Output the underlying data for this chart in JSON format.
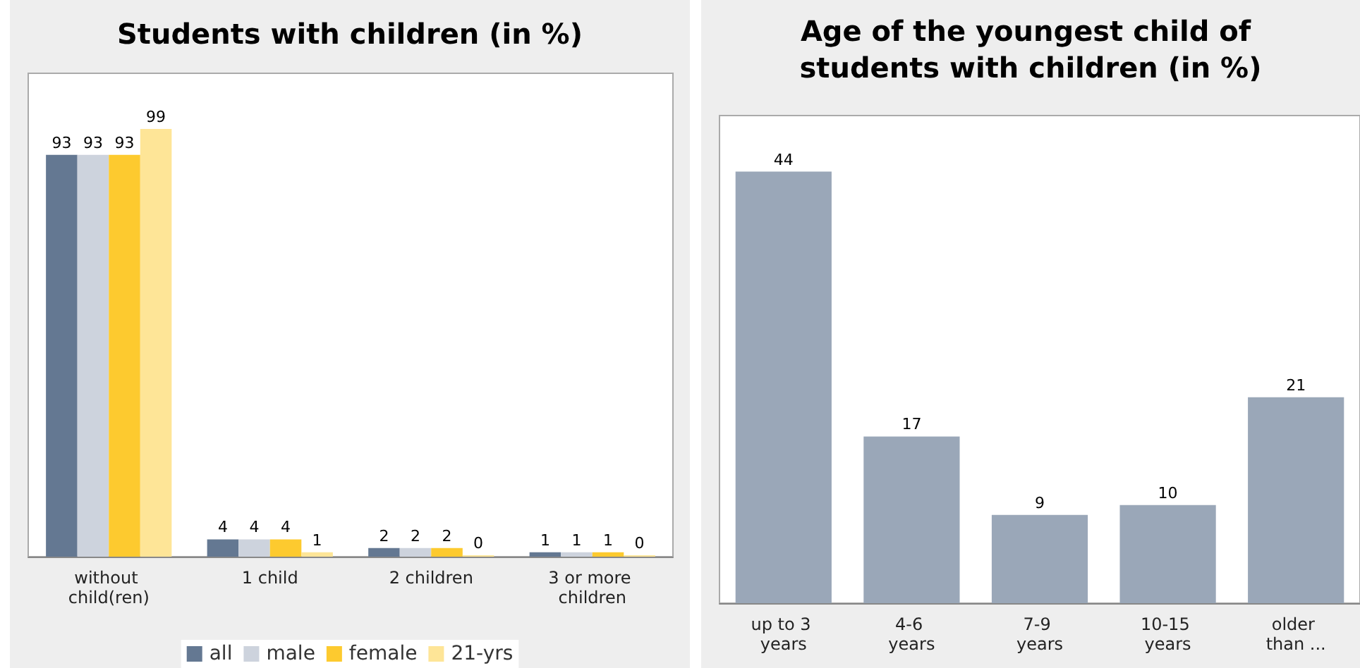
{
  "chart_data": [
    {
      "type": "bar",
      "title": "Students with children (in %)",
      "categories": [
        "without child(ren)",
        "1 child",
        "2 children",
        "3 or more children"
      ],
      "series": [
        {
          "name": "all",
          "color": "#647892",
          "values": [
            93,
            4,
            2,
            1
          ]
        },
        {
          "name": "male",
          "color": "#cdd3dd",
          "values": [
            93,
            4,
            2,
            1
          ]
        },
        {
          "name": "female",
          "color": "#fdca2f",
          "values": [
            93,
            4,
            2,
            1
          ]
        },
        {
          "name": "21-yrs",
          "color": "#fee597",
          "values": [
            99,
            1,
            0,
            0
          ]
        }
      ],
      "data_labels": true,
      "legend": "bottom",
      "grid": false,
      "tick_labels": "x"
    },
    {
      "type": "bar",
      "title": "Age of the youngest child of students with children (in %)",
      "categories": [
        "up to 3 years",
        "4-6 years",
        "7-9 years",
        "10-15 years",
        "older than ..."
      ],
      "series": [
        {
          "color": "#9aa7b8",
          "values": [
            44,
            17,
            9,
            10,
            21
          ]
        }
      ],
      "data_labels": true,
      "legend": false,
      "grid": false,
      "tick_labels": "x"
    }
  ]
}
